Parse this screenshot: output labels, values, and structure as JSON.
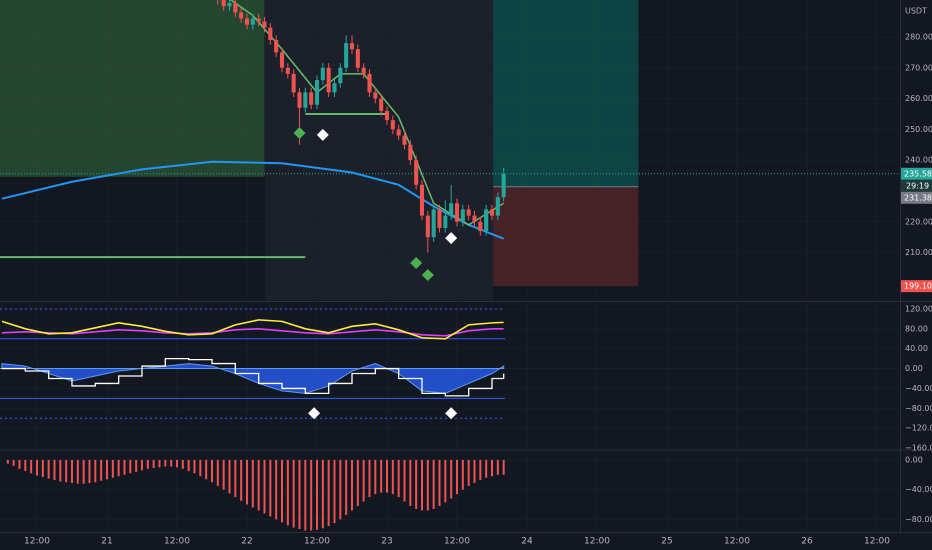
{
  "chart_data": [
    {
      "type": "candlestick",
      "unit": "USDT",
      "xlim": [
        -18.34,
        135.94
      ],
      "xticks": [
        {
          "value": -12,
          "label": "12:00"
        },
        {
          "value": 0,
          "label": "21"
        },
        {
          "value": 12,
          "label": "12:00"
        },
        {
          "value": 24,
          "label": "22"
        },
        {
          "value": 36,
          "label": "12:00"
        },
        {
          "value": 48,
          "label": "23"
        },
        {
          "value": 60,
          "label": "12:00"
        },
        {
          "value": 72,
          "label": "24"
        },
        {
          "value": 84,
          "label": "12:00"
        },
        {
          "value": 96,
          "label": "25"
        },
        {
          "value": 108,
          "label": "12:00"
        },
        {
          "value": 120,
          "label": "26"
        },
        {
          "value": 132,
          "label": "12:00"
        }
      ],
      "ylim": [
        194.6,
        292
      ],
      "yticks": [
        {
          "value": 210,
          "label": "210.00"
        },
        {
          "value": 220,
          "label": "220.00"
        },
        {
          "value": 240,
          "label": "240.00"
        },
        {
          "value": 250,
          "label": "250.00"
        },
        {
          "value": 260,
          "label": "260.00"
        },
        {
          "value": 270,
          "label": "270.00"
        },
        {
          "value": 280,
          "label": "280.00"
        }
      ],
      "up_color": "#26a69a",
      "down_color": "#ef5350",
      "x": [
        19,
        20,
        21,
        22,
        23,
        24,
        25,
        26,
        27,
        28,
        29,
        30,
        31,
        32,
        33,
        34,
        35,
        36,
        37,
        38,
        39,
        40,
        41,
        42,
        43,
        44,
        45,
        46,
        47,
        48,
        49,
        50,
        51,
        52,
        53,
        54,
        55,
        56,
        57,
        58,
        59,
        60,
        61,
        62,
        63,
        64,
        65,
        66,
        67,
        68
      ],
      "open": [
        293,
        292,
        290,
        291,
        288,
        286,
        284,
        286,
        285,
        283,
        279,
        275,
        270,
        268,
        262,
        257,
        262,
        258,
        266,
        270,
        262,
        265,
        270,
        278,
        276,
        270,
        268,
        262,
        260,
        256,
        253,
        250,
        248,
        245,
        240,
        232,
        222,
        215,
        224,
        218,
        222,
        226,
        220,
        224,
        222,
        220,
        217,
        224,
        222,
        228
      ],
      "high": [
        294.5,
        293.5,
        292.5,
        292.5,
        289.5,
        287.5,
        287.5,
        287.5,
        286.5,
        284.5,
        280.5,
        276.5,
        271.5,
        269.5,
        263.5,
        263.5,
        263.5,
        267.5,
        271.5,
        271.5,
        266.5,
        271.5,
        280.5,
        280.5,
        277.5,
        271.5,
        269.5,
        263.5,
        261.5,
        257.5,
        254.5,
        251.5,
        249.5,
        246.5,
        241.5,
        233.5,
        223.5,
        225.5,
        225.5,
        227,
        232,
        227.5,
        225.5,
        225.5,
        223.5,
        221.5,
        225.5,
        225.5,
        229.5,
        237.5
      ],
      "low": [
        290.5,
        288.5,
        288.5,
        286.5,
        284.5,
        282.5,
        282.5,
        283.5,
        281.5,
        277.5,
        273.5,
        268.5,
        266.5,
        260.5,
        245,
        255.5,
        256.5,
        256.5,
        264.5,
        260.5,
        260.5,
        263.5,
        268.5,
        274.5,
        268.5,
        266.5,
        260.5,
        258.5,
        254.5,
        251.5,
        248.5,
        246.5,
        243.5,
        238.5,
        230.5,
        220.5,
        210,
        213.5,
        216.5,
        216.5,
        220.5,
        218.5,
        218.5,
        220.5,
        218.5,
        215.5,
        215.5,
        220.5,
        220.5,
        226.5
      ],
      "close": [
        292,
        290,
        291,
        288,
        286,
        284,
        286,
        285,
        283,
        279,
        275,
        270,
        268,
        262,
        257,
        262,
        258,
        266,
        270,
        262,
        265,
        270,
        278,
        276,
        270,
        268,
        262,
        260,
        256,
        253,
        250,
        248,
        245,
        240,
        232,
        222,
        215,
        224,
        218,
        222,
        226,
        220,
        224,
        222,
        220,
        217,
        224,
        222,
        228,
        235.58
      ],
      "overlays": [
        {
          "color": "#2196f3",
          "x": [
            -18,
            -6,
            6,
            18,
            30,
            42,
            50,
            56,
            62,
            68
          ],
          "values": [
            227.5,
            233,
            237,
            239.5,
            239,
            236,
            232,
            225,
            219,
            214.5
          ]
        },
        {
          "color": "#66bb6a",
          "x": [
            19,
            25,
            30,
            36,
            40,
            44,
            50,
            56,
            62,
            68
          ],
          "values": [
            295,
            287,
            276,
            262,
            268,
            268,
            254,
            226,
            219,
            226
          ]
        }
      ],
      "zone": {
        "x": [
          -18.34,
          27
        ],
        "y": [
          234.6,
          295
        ],
        "color": "#4caf50"
      },
      "levels": [
        {
          "x": [
            -18.34,
            34
          ],
          "y": 208.5
        },
        {
          "x": [
            34,
            48.2
          ],
          "y": 255
        }
      ],
      "position": {
        "x": [
          66.2,
          91.1
        ],
        "entry": 231.38,
        "target": 295,
        "stop": 199.1
      },
      "markers": [
        {
          "x": 33,
          "y": 248.8,
          "color": "#4caf50"
        },
        {
          "x": 37,
          "y": 248.2,
          "color": "#ffffff"
        },
        {
          "x": 53,
          "y": 206.6,
          "color": "#4caf50"
        },
        {
          "x": 55,
          "y": 202.7,
          "color": "#4caf50"
        },
        {
          "x": 59,
          "y": 214.7,
          "color": "#ffffff"
        }
      ],
      "price_labels": [
        {
          "value": 235.58,
          "color": "#26a69a"
        },
        {
          "value": 231.38,
          "color": "#787b86"
        },
        {
          "value": 199.1,
          "label": "199.10",
          "color": "#ef5350"
        }
      ],
      "countdown": "29:19"
    },
    {
      "type": "line",
      "ylim": [
        -162,
        132
      ],
      "yticks": [
        {
          "value": 120,
          "label": "120.00"
        },
        {
          "value": 80,
          "label": "80.00"
        },
        {
          "value": 40,
          "label": "40.00"
        },
        {
          "value": 0,
          "label": "0.00"
        },
        {
          "value": -40,
          "label": "−40.00"
        },
        {
          "value": -80,
          "label": "−80.00"
        },
        {
          "value": -120,
          "label": "−120.00"
        },
        {
          "value": -160,
          "label": "−160.00"
        }
      ],
      "x": [
        -18,
        -14,
        -10,
        -6,
        -2,
        2,
        6,
        10,
        14,
        18,
        22,
        26,
        30,
        34,
        38,
        42,
        46,
        50,
        54,
        58,
        62,
        66,
        68
      ],
      "series": [
        {
          "color": "#2962ff",
          "style": "area",
          "values": [
            10,
            5,
            -10,
            -25,
            -15,
            -5,
            0,
            5,
            10,
            5,
            -10,
            -30,
            -45,
            -50,
            -35,
            -5,
            10,
            -10,
            -45,
            -50,
            -30,
            -10,
            5
          ]
        },
        {
          "color": "#e040fb",
          "style": "line",
          "values": [
            72,
            74,
            72,
            70,
            74,
            78,
            76,
            72,
            70,
            72,
            78,
            80,
            76,
            72,
            70,
            74,
            78,
            74,
            68,
            66,
            76,
            80,
            80
          ]
        },
        {
          "color": "#ffeb3b",
          "style": "line",
          "values": [
            95,
            80,
            70,
            72,
            82,
            92,
            85,
            75,
            68,
            70,
            88,
            98,
            95,
            80,
            72,
            85,
            90,
            78,
            62,
            60,
            88,
            92,
            93
          ]
        },
        {
          "color": "#ffffff",
          "style": "step",
          "values": [
            0,
            -5,
            -20,
            -35,
            -30,
            -15,
            5,
            20,
            18,
            10,
            -10,
            -30,
            -40,
            -50,
            -30,
            -10,
            0,
            -20,
            -50,
            -55,
            -40,
            -20,
            -10
          ]
        }
      ],
      "levels": [
        {
          "value": 120,
          "color": "#2962ff"
        },
        {
          "value": 60,
          "color": "#2962ff"
        },
        {
          "value": 0,
          "color": "#b2b5be"
        },
        {
          "value": -60,
          "color": "#2962ff"
        },
        {
          "value": -100,
          "color": "#2962ff"
        }
      ],
      "markers": [
        {
          "x": 35.5,
          "y": -90,
          "color": "#ffffff"
        },
        {
          "x": 59,
          "y": -90,
          "color": "#ffffff"
        }
      ]
    },
    {
      "type": "bar",
      "color": "#ef5350",
      "ylim": [
        -97,
        12
      ],
      "yticks": [
        {
          "value": 0,
          "label": "0.00"
        },
        {
          "value": -40,
          "label": "−40.00"
        },
        {
          "value": -80,
          "label": "−80.00"
        }
      ],
      "x": [
        -17,
        -16,
        -15,
        -14,
        -13,
        -12,
        -11,
        -10,
        -9,
        -8,
        -7,
        -6,
        -5,
        -4,
        -3,
        -2,
        -1,
        0,
        1,
        2,
        3,
        4,
        5,
        6,
        7,
        8,
        9,
        10,
        11,
        12,
        13,
        14,
        15,
        16,
        17,
        18,
        19,
        20,
        21,
        22,
        23,
        24,
        25,
        26,
        27,
        28,
        29,
        30,
        31,
        32,
        33,
        34,
        35,
        36,
        37,
        38,
        39,
        40,
        41,
        42,
        43,
        44,
        45,
        46,
        47,
        48,
        49,
        50,
        51,
        52,
        53,
        54,
        55,
        56,
        57,
        58,
        59,
        60,
        61,
        62,
        63,
        64,
        65,
        66,
        67,
        68
      ],
      "values": [
        -5,
        -8,
        -12,
        -15,
        -18,
        -21,
        -23,
        -25,
        -27,
        -29,
        -30,
        -31,
        -32,
        -32,
        -31,
        -30,
        -28,
        -26,
        -24,
        -22,
        -20,
        -18,
        -16,
        -14,
        -12,
        -11,
        -10,
        -9,
        -9,
        -10,
        -12,
        -15,
        -18,
        -22,
        -26,
        -30,
        -35,
        -40,
        -45,
        -50,
        -55,
        -60,
        -64,
        -68,
        -72,
        -76,
        -80,
        -84,
        -88,
        -91,
        -93,
        -95,
        -95,
        -94,
        -92,
        -89,
        -85,
        -80,
        -74,
        -68,
        -62,
        -56,
        -50,
        -46,
        -44,
        -44,
        -46,
        -50,
        -56,
        -62,
        -66,
        -68,
        -68,
        -66,
        -62,
        -57,
        -52,
        -46,
        -40,
        -35,
        -31,
        -27,
        -24,
        -22,
        -20,
        -20
      ]
    }
  ]
}
